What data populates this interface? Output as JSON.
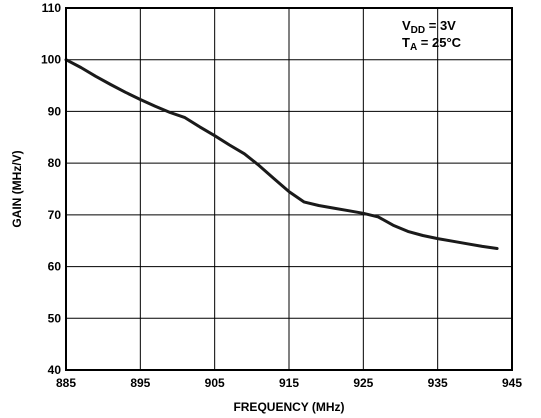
{
  "chart_data": {
    "type": "line",
    "xlabel": "FREQUENCY (MHz)",
    "ylabel": "GAIN (MHz/V)",
    "xlim": [
      885,
      945
    ],
    "ylim": [
      40,
      110
    ],
    "xticks": [
      "885",
      "895",
      "905",
      "915",
      "925",
      "935",
      "945"
    ],
    "yticks": [
      "40",
      "50",
      "60",
      "70",
      "80",
      "90",
      "100",
      "110"
    ],
    "grid": true,
    "annotation": {
      "line1": {
        "main": "V",
        "sub": "DD",
        "rest": " = 3V"
      },
      "line2": {
        "main": "T",
        "sub": "A",
        "rest": " = 25°C"
      }
    },
    "series": [
      {
        "x": [
          885,
          887,
          889,
          891,
          893,
          895,
          897,
          899,
          901,
          903,
          905,
          907,
          909,
          911,
          913,
          915,
          917,
          919,
          921,
          923,
          925,
          927,
          929,
          931,
          933,
          935,
          937,
          939,
          941,
          943
        ],
        "y": [
          100,
          98.5,
          96.8,
          95.2,
          93.7,
          92.3,
          91,
          89.8,
          88.8,
          87,
          85.3,
          83.5,
          81.8,
          79.5,
          77,
          74.5,
          72.5,
          71.8,
          71.3,
          70.8,
          70.3,
          69.6,
          68,
          66.8,
          66,
          65.4,
          64.9,
          64.4,
          63.9,
          63.5
        ]
      }
    ],
    "colors": {
      "line": "#1a1a1a",
      "grid": "#000000",
      "background": "#ffffff"
    }
  }
}
